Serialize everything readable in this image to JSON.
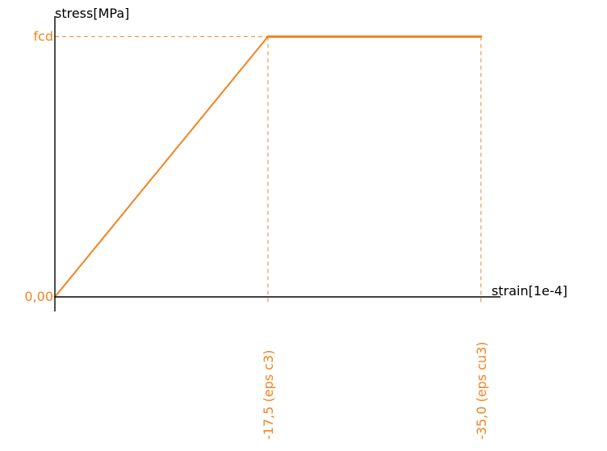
{
  "chart_data": {
    "type": "line",
    "ylabel": "stress[MPa]",
    "xlabel": "strain[1e-4]",
    "y_ticks": [
      {
        "label": "fcd",
        "value": 1
      },
      {
        "label": "0,00",
        "value": 0
      }
    ],
    "x_ticks": [
      {
        "label": "-17,5  (eps c3)",
        "value": 17.5
      },
      {
        "label": "-35,0  (eps cu3)",
        "value": 35.0
      }
    ],
    "series": [
      {
        "x": [
          0,
          17.5,
          35.0
        ],
        "y": [
          0,
          1,
          1
        ]
      }
    ],
    "xlim": [
      0,
      36.6
    ],
    "ylim": [
      0,
      1.06
    ],
    "colors": {
      "curve": "#f5821f",
      "axis": "#000000",
      "guide": "#f5821f",
      "tick_label": "#f5821f"
    }
  }
}
